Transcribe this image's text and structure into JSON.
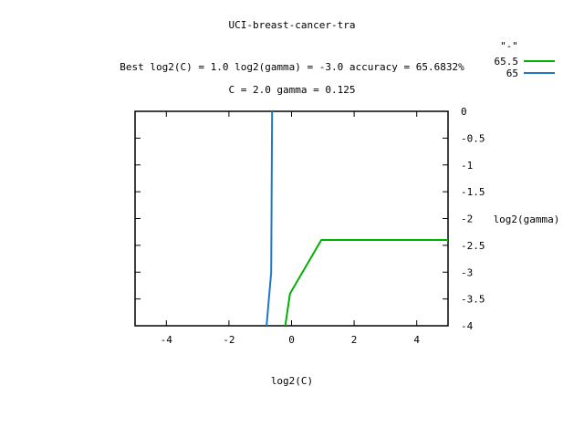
{
  "chart_data": {
    "type": "line",
    "title": "UCI-breast-cancer-tra",
    "subtitle_1": "Best log2(C) = 1.0  log2(gamma) = -3.0  accuracy = 65.6832%",
    "subtitle_2": "C = 2.0  gamma = 0.125",
    "xlabel": "log2(C)",
    "ylabel": "log2(gamma)",
    "xlim": [
      -5,
      5
    ],
    "ylim": [
      -4,
      0
    ],
    "x_ticks": [
      -4,
      -2,
      0,
      2,
      4
    ],
    "x_tick_labels": [
      "-4",
      "-2",
      "0",
      "2",
      "4"
    ],
    "y_ticks": [
      0,
      -0.5,
      -1,
      -1.5,
      -2,
      -2.5,
      -3,
      -3.5,
      -4
    ],
    "y_tick_labels": [
      "0",
      "-0.5",
      "-1",
      "-1.5",
      "-2",
      "-2.5",
      "-3",
      "-3.5",
      "-4"
    ],
    "grid": false,
    "legend_title": "\"-\"",
    "legend_position": "top-right",
    "series": [
      {
        "name": "65.5",
        "color": "#00b000",
        "points": [
          [
            -0.2,
            -4
          ],
          [
            -0.05,
            -3.4
          ],
          [
            0.95,
            -2.4
          ],
          [
            5,
            -2.4
          ]
        ]
      },
      {
        "name": "65",
        "color": "#1e78c8",
        "points": [
          [
            -0.8,
            -4
          ],
          [
            -0.65,
            -3.0
          ],
          [
            -0.62,
            0
          ]
        ]
      }
    ]
  }
}
